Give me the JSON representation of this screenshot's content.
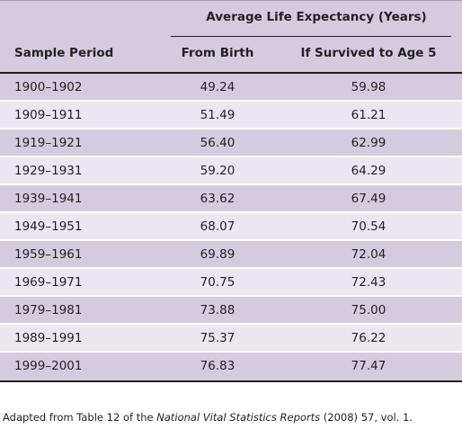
{
  "table": {
    "group_header": "Average Life Expectancy (Years)",
    "columns": {
      "period": "Sample Period",
      "from_birth": "From Birth",
      "age5": "If Survived to Age 5"
    },
    "rows": [
      {
        "period": "1900–1902",
        "from_birth": "49.24",
        "age5": "59.98"
      },
      {
        "period": "1909–1911",
        "from_birth": "51.49",
        "age5": "61.21"
      },
      {
        "period": "1919–1921",
        "from_birth": "56.40",
        "age5": "62.99"
      },
      {
        "period": "1929–1931",
        "from_birth": "59.20",
        "age5": "64.29"
      },
      {
        "period": "1939–1941",
        "from_birth": "63.62",
        "age5": "67.49"
      },
      {
        "period": "1949–1951",
        "from_birth": "68.07",
        "age5": "70.54"
      },
      {
        "period": "1959–1961",
        "from_birth": "69.89",
        "age5": "72.04"
      },
      {
        "period": "1969–1971",
        "from_birth": "70.75",
        "age5": "72.43"
      },
      {
        "period": "1979–1981",
        "from_birth": "73.88",
        "age5": "75.00"
      },
      {
        "period": "1989–1991",
        "from_birth": "75.37",
        "age5": "76.22"
      },
      {
        "period": "1999–2001",
        "from_birth": "76.83",
        "age5": "77.47"
      }
    ]
  },
  "footnote": {
    "prefix": "Adapted from Table 12 of the ",
    "source_title": "National Vital Statistics Reports",
    "suffix": " (2008) 57, vol. 1."
  },
  "colors": {
    "header_bg": "#d5cbdf",
    "row_odd_bg": "#d5cbdf",
    "row_even_bg": "#ece6f0",
    "rule": "#231f20"
  }
}
